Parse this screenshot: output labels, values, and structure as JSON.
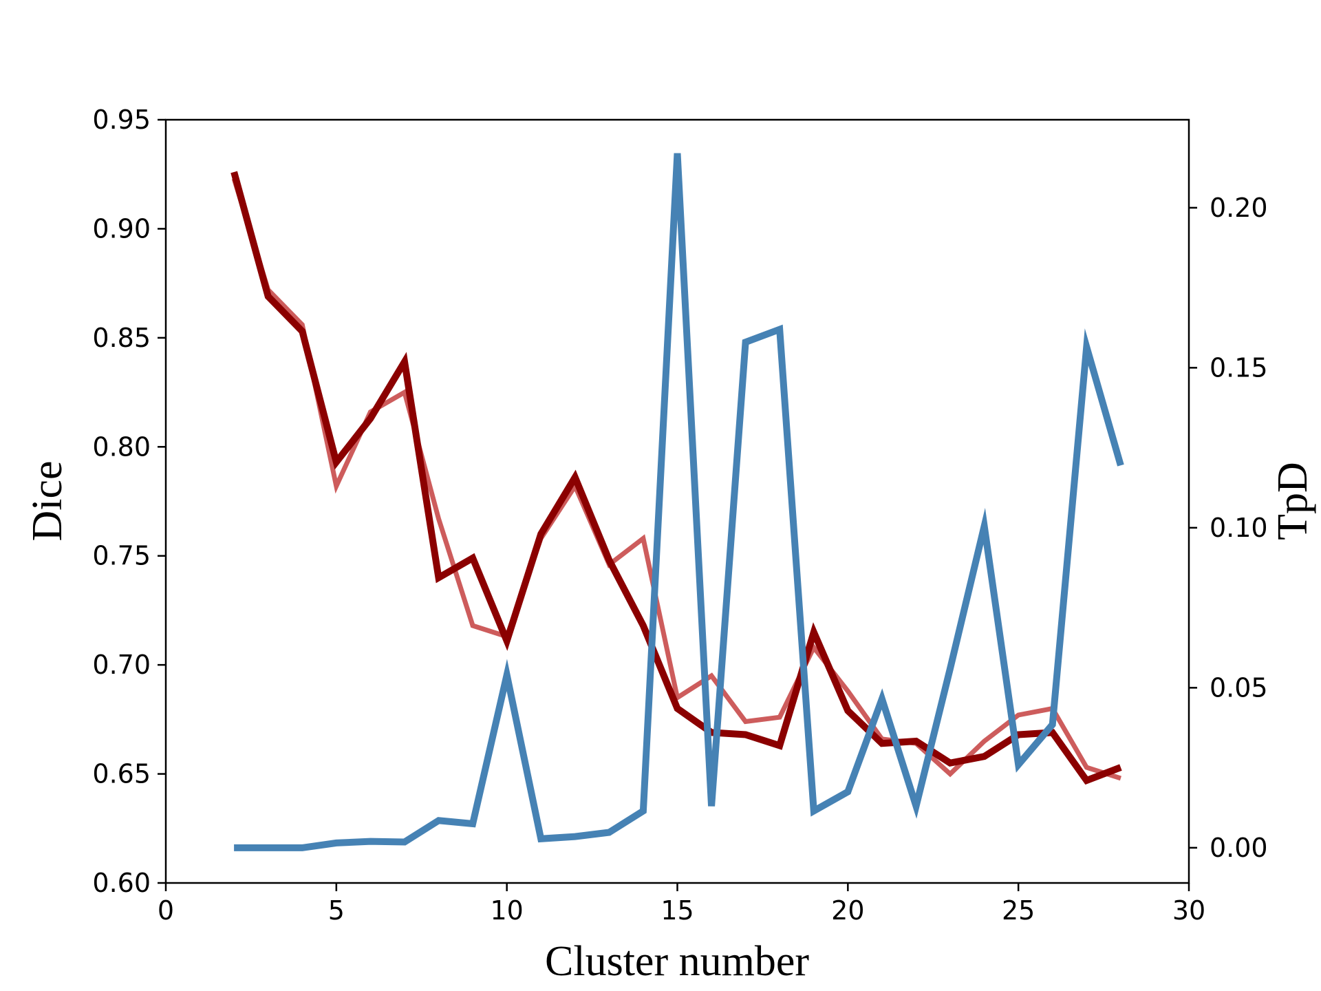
{
  "chart_data": {
    "type": "line",
    "xlabel": "Cluster number",
    "ylabel_left": "Dice",
    "ylabel_right": "TpD",
    "xlim": [
      0,
      30
    ],
    "ylim_left": [
      0.6,
      0.95
    ],
    "ylim_right": [
      -0.011,
      0.2275
    ],
    "xticks": [
      0,
      5,
      10,
      15,
      20,
      25,
      30
    ],
    "yticks_left": [
      "0.60",
      "0.65",
      "0.70",
      "0.75",
      "0.80",
      "0.85",
      "0.90",
      "0.95"
    ],
    "yticks_right": [
      "0.00",
      "0.05",
      "0.10",
      "0.15",
      "0.20"
    ],
    "grid": false,
    "series": [
      {
        "axis": "left",
        "color": "#cd5c5c",
        "x": [
          2,
          3,
          4,
          5,
          6,
          7,
          8,
          9,
          10,
          11,
          12,
          13,
          14,
          15,
          16,
          17,
          18,
          19,
          20,
          21,
          22,
          23,
          24,
          25,
          26,
          27,
          28
        ],
        "values": [
          0.923,
          0.872,
          0.856,
          0.782,
          0.816,
          0.825,
          0.767,
          0.718,
          0.713,
          0.758,
          0.782,
          0.746,
          0.758,
          0.685,
          0.695,
          0.674,
          0.676,
          0.708,
          0.688,
          0.666,
          0.664,
          0.65,
          0.665,
          0.677,
          0.68,
          0.653,
          0.648
        ]
      },
      {
        "axis": "left",
        "color": "#8b0000",
        "x": [
          2,
          3,
          4,
          5,
          6,
          7,
          8,
          9,
          10,
          11,
          12,
          13,
          14,
          15,
          16,
          17,
          18,
          19,
          20,
          21,
          22,
          23,
          24,
          25,
          26,
          27,
          28
        ],
        "values": [
          0.926,
          0.869,
          0.853,
          0.793,
          0.813,
          0.839,
          0.74,
          0.749,
          0.711,
          0.76,
          0.786,
          0.748,
          0.718,
          0.68,
          0.669,
          0.668,
          0.663,
          0.715,
          0.679,
          0.664,
          0.665,
          0.655,
          0.658,
          0.668,
          0.669,
          0.647,
          0.653
        ]
      },
      {
        "axis": "right",
        "color": "#4682b4",
        "x": [
          2,
          3,
          4,
          5,
          6,
          7,
          8,
          9,
          10,
          11,
          12,
          13,
          14,
          15,
          16,
          17,
          18,
          19,
          20,
          21,
          22,
          23,
          24,
          25,
          26,
          27,
          28
        ],
        "values": [
          0.0,
          0.0,
          0.0,
          0.0015,
          0.002,
          0.0018,
          0.0085,
          0.0075,
          0.054,
          0.0028,
          0.0035,
          0.0048,
          0.0115,
          0.217,
          0.013,
          0.158,
          0.162,
          0.0115,
          0.0175,
          0.0465,
          0.013,
          0.056,
          0.1005,
          0.026,
          0.0385,
          0.1565,
          0.1195
        ]
      }
    ]
  }
}
